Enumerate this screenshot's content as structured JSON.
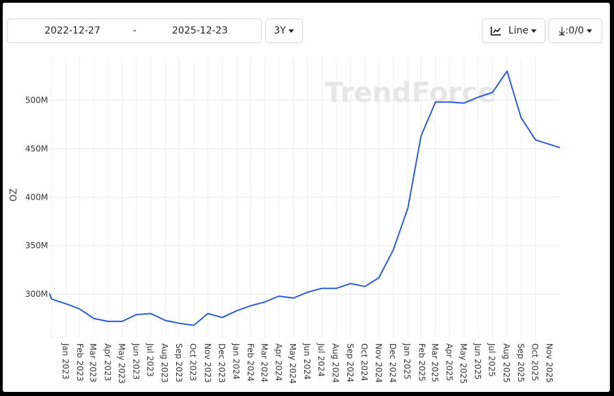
{
  "toolbar": {
    "range_button": "3Y",
    "chart_type_button": "Line",
    "download_button": ":0/0"
  },
  "chart_data": {
    "type": "line",
    "y_label": "OZ",
    "watermark": "TrendForce",
    "xlim": [
      "2022-12-27",
      "2025-12-23"
    ],
    "xticks": [
      {
        "value": "2023-01",
        "label": "Jan 2023"
      },
      {
        "value": "2023-02",
        "label": "Feb 2023"
      },
      {
        "value": "2023-03",
        "label": "Mar 2023"
      },
      {
        "value": "2023-04",
        "label": "Apr 2023"
      },
      {
        "value": "2023-05",
        "label": "May 2023"
      },
      {
        "value": "2023-06",
        "label": "Jun 2023"
      },
      {
        "value": "2023-07",
        "label": "Jul 2023"
      },
      {
        "value": "2023-08",
        "label": "Aug 2023"
      },
      {
        "value": "2023-09",
        "label": "Sep 2023"
      },
      {
        "value": "2023-10",
        "label": "Oct 2023"
      },
      {
        "value": "2023-11",
        "label": "Nov 2023"
      },
      {
        "value": "2023-12",
        "label": "Dec 2023"
      },
      {
        "value": "2024-01",
        "label": "Jan 2024"
      },
      {
        "value": "2024-02",
        "label": "Feb 2024"
      },
      {
        "value": "2024-03",
        "label": "Mar 2024"
      },
      {
        "value": "2024-04",
        "label": "Apr 2024"
      },
      {
        "value": "2024-05",
        "label": "May 2024"
      },
      {
        "value": "2024-06",
        "label": "Jun 2024"
      },
      {
        "value": "2024-07",
        "label": "Jul 2024"
      },
      {
        "value": "2024-08",
        "label": "Aug 2024"
      },
      {
        "value": "2024-09",
        "label": "Sep 2024"
      },
      {
        "value": "2024-10",
        "label": "Oct 2024"
      },
      {
        "value": "2024-11",
        "label": "Nov 2024"
      },
      {
        "value": "2024-12",
        "label": "Dec 2024"
      },
      {
        "value": "2025-01",
        "label": "Jan 2025"
      },
      {
        "value": "2025-02",
        "label": "Feb 2025"
      },
      {
        "value": "2025-03",
        "label": "Mar 2025"
      },
      {
        "value": "2025-04",
        "label": "Apr 2025"
      },
      {
        "value": "2025-05",
        "label": "May 2025"
      },
      {
        "value": "2025-06",
        "label": "Jun 2025"
      },
      {
        "value": "2025-07",
        "label": "Jul 2025"
      },
      {
        "value": "2025-08",
        "label": "Aug 2025"
      },
      {
        "value": "2025-09",
        "label": "Sep 2025"
      },
      {
        "value": "2025-10",
        "label": "Oct 2025"
      },
      {
        "value": "2025-11",
        "label": "Nov 2025"
      }
    ],
    "ylim": [
      255000000,
      544000000
    ],
    "yticks": [
      {
        "value": 300000000,
        "label": "300M"
      },
      {
        "value": 350000000,
        "label": "350M"
      },
      {
        "value": 400000000,
        "label": "400M"
      },
      {
        "value": 450000000,
        "label": "450M"
      },
      {
        "value": 500000000,
        "label": "500M"
      }
    ],
    "grid": true,
    "x": [
      "2022-12-27",
      "2023-01",
      "2023-02",
      "2023-03",
      "2023-04",
      "2023-05",
      "2023-06",
      "2023-07",
      "2023-08",
      "2023-09",
      "2023-10",
      "2023-11",
      "2023-12",
      "2024-01",
      "2024-02",
      "2024-03",
      "2024-04",
      "2024-05",
      "2024-06",
      "2024-07",
      "2024-08",
      "2024-09",
      "2024-10",
      "2024-11",
      "2024-12",
      "2025-01",
      "2025-02",
      "2025-03",
      "2025-04",
      "2025-05",
      "2025-06",
      "2025-07",
      "2025-08",
      "2025-09",
      "2025-10",
      "2025-11",
      "2025-12-23"
    ],
    "series": [
      {
        "color": "#2a5bd7",
        "values": [
          301000000,
          295000000,
          290000000,
          285000000,
          275000000,
          272000000,
          272000000,
          279000000,
          280000000,
          273000000,
          270000000,
          268000000,
          280000000,
          276000000,
          283000000,
          288000000,
          292000000,
          298000000,
          296000000,
          302000000,
          306000000,
          306000000,
          311000000,
          308000000,
          317000000,
          346000000,
          389000000,
          463000000,
          498000000,
          498000000,
          497000000,
          503000000,
          508000000,
          530000000,
          482000000,
          459000000,
          451000000
        ]
      }
    ]
  }
}
